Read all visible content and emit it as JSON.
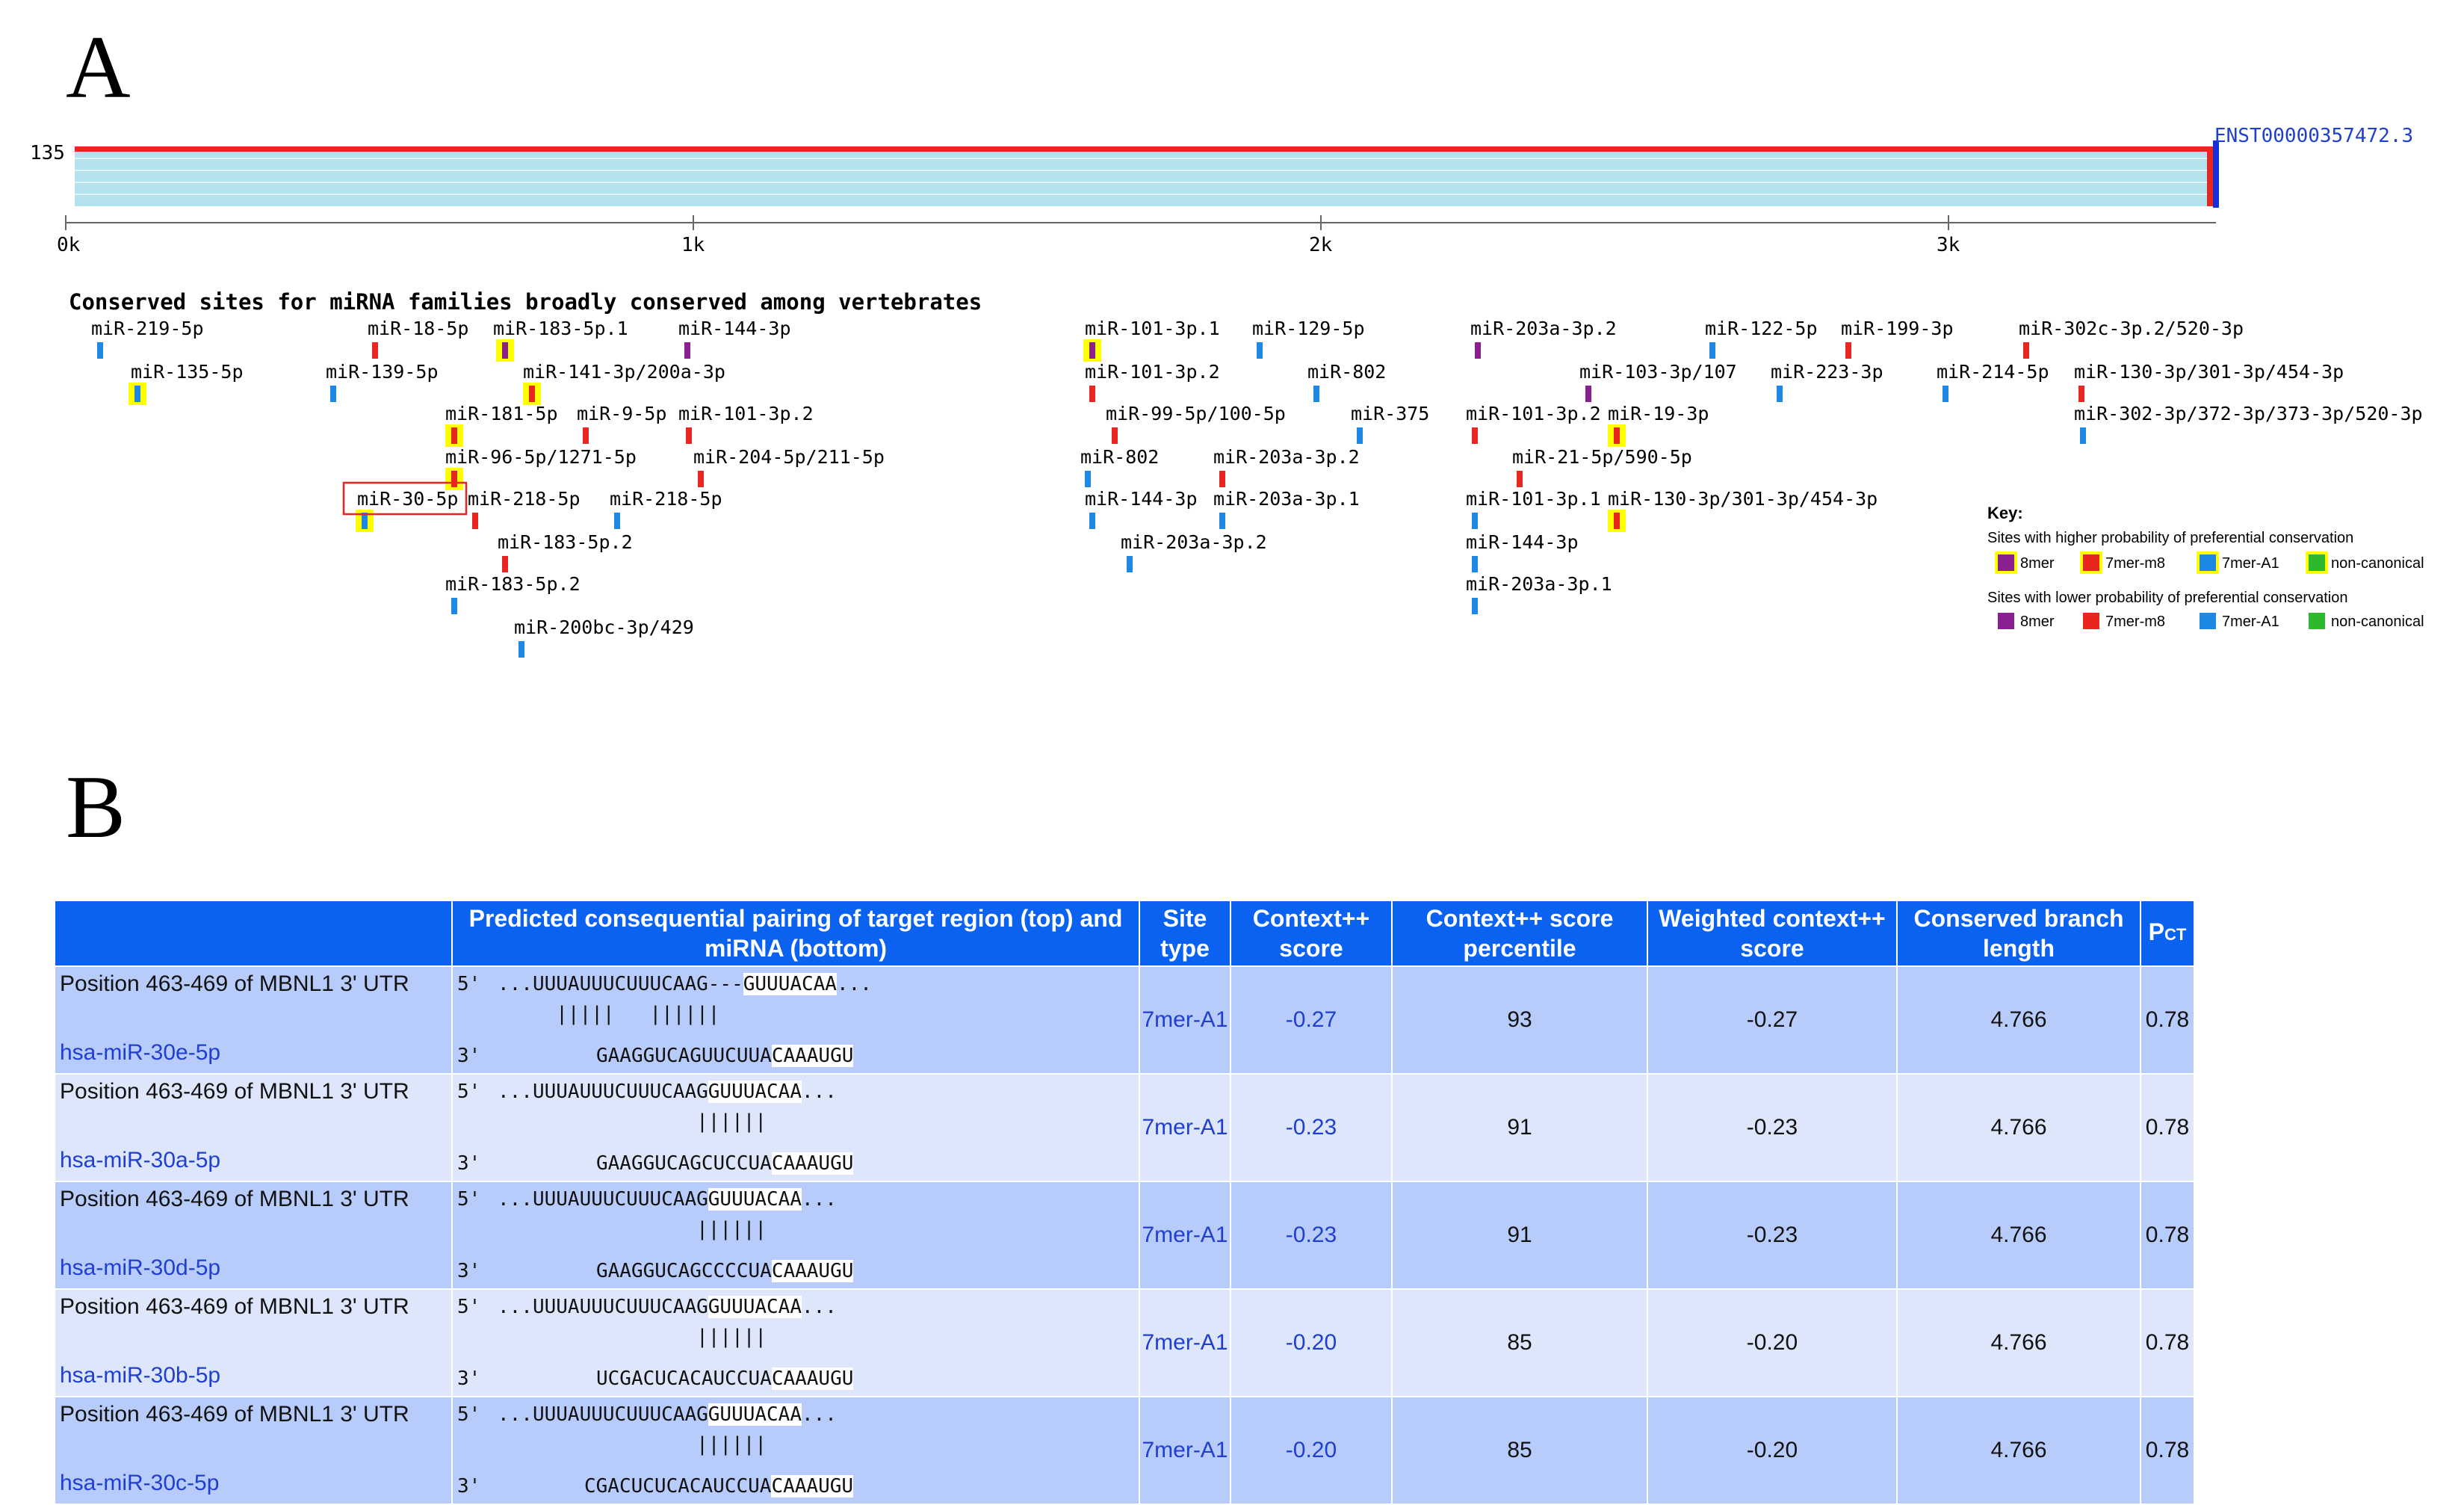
{
  "panels": {
    "a_letter": "A",
    "b_letter": "B"
  },
  "panel_a": {
    "track_value": "135",
    "transcript_id": "ENST00000357472.3",
    "axis_ticks": [
      "0k",
      "1k",
      "2k",
      "3k"
    ],
    "section_title": "Conserved sites for miRNA families broadly conserved among vertebrates",
    "key": {
      "title": "Key:",
      "higher_label": "Sites with higher probability of preferential conservation",
      "lower_label": "Sites with lower probability of preferential conservation",
      "items": [
        "8mer",
        "7mer-m8",
        "7mer-A1",
        "non-canonical"
      ],
      "colors": {
        "8mer": "#8a1f8f",
        "7mer-m8": "#e8251f",
        "7mer-A1": "#1e88e5",
        "non-canonical": "#2eb82e",
        "highlight": "#ffff00"
      }
    },
    "sites": [
      {
        "label": "miR-219-5p",
        "type": "7mer-A1",
        "conserved": false
      },
      {
        "label": "miR-135-5p",
        "type": "7mer-A1",
        "conserved": true
      },
      {
        "label": "miR-18-5p",
        "type": "7mer-m8",
        "conserved": false
      },
      {
        "label": "miR-183-5p.1",
        "type": "8mer",
        "conserved": true
      },
      {
        "label": "miR-144-3p",
        "type": "8mer",
        "conserved": false
      },
      {
        "label": "miR-139-5p",
        "type": "7mer-A1",
        "conserved": false
      },
      {
        "label": "miR-141-3p/200a-3p",
        "type": "7mer-m8",
        "conserved": true
      },
      {
        "label": "miR-181-5p",
        "type": "7mer-m8",
        "conserved": true
      },
      {
        "label": "miR-9-5p",
        "type": "7mer-m8",
        "conserved": false
      },
      {
        "label": "miR-101-3p.2",
        "type": "7mer-m8",
        "conserved": false
      },
      {
        "label": "miR-96-5p/1271-5p",
        "type": "7mer-m8",
        "conserved": true
      },
      {
        "label": "miR-204-5p/211-5p",
        "type": "7mer-m8",
        "conserved": false
      },
      {
        "label": "miR-30-5p",
        "type": "7mer-A1",
        "conserved": true
      },
      {
        "label": "miR-218-5p",
        "type": "7mer-m8",
        "conserved": false
      },
      {
        "label": "miR-218-5p",
        "type": "7mer-A1",
        "conserved": false
      },
      {
        "label": "miR-183-5p.2",
        "type": "7mer-m8",
        "conserved": false
      },
      {
        "label": "miR-183-5p.2",
        "type": "7mer-A1",
        "conserved": false
      },
      {
        "label": "miR-200bc-3p/429",
        "type": "7mer-A1",
        "conserved": false
      },
      {
        "label": "miR-101-3p.1",
        "type": "8mer",
        "conserved": true
      },
      {
        "label": "miR-129-5p",
        "type": "7mer-A1",
        "conserved": false
      },
      {
        "label": "miR-101-3p.2",
        "type": "7mer-m8",
        "conserved": false
      },
      {
        "label": "miR-802",
        "type": "7mer-A1",
        "conserved": false
      },
      {
        "label": "miR-99-5p/100-5p",
        "type": "7mer-m8",
        "conserved": false
      },
      {
        "label": "miR-375",
        "type": "7mer-A1",
        "conserved": false
      },
      {
        "label": "miR-802",
        "type": "7mer-A1",
        "conserved": false
      },
      {
        "label": "miR-203a-3p.2",
        "type": "7mer-m8",
        "conserved": false
      },
      {
        "label": "miR-144-3p",
        "type": "7mer-A1",
        "conserved": false
      },
      {
        "label": "miR-203a-3p.1",
        "type": "7mer-A1",
        "conserved": false
      },
      {
        "label": "miR-203a-3p.2",
        "type": "7mer-A1",
        "conserved": false
      },
      {
        "label": "miR-203a-3p.2",
        "type": "8mer",
        "conserved": false
      },
      {
        "label": "miR-122-5p",
        "type": "7mer-A1",
        "conserved": false
      },
      {
        "label": "miR-199-3p",
        "type": "7mer-m8",
        "conserved": false
      },
      {
        "label": "miR-302c-3p.2/520-3p",
        "type": "7mer-m8",
        "conserved": false
      },
      {
        "label": "miR-103-3p/107",
        "type": "8mer",
        "conserved": false
      },
      {
        "label": "miR-223-3p",
        "type": "7mer-A1",
        "conserved": false
      },
      {
        "label": "miR-214-5p",
        "type": "7mer-A1",
        "conserved": false
      },
      {
        "label": "miR-130-3p/301-3p/454-3p",
        "type": "7mer-m8",
        "conserved": false
      },
      {
        "label": "miR-101-3p.2",
        "type": "7mer-m8",
        "conserved": false
      },
      {
        "label": "miR-19-3p",
        "type": "7mer-m8",
        "conserved": true
      },
      {
        "label": "miR-302-3p/372-3p/373-3p/520-3p",
        "type": "7mer-A1",
        "conserved": false
      },
      {
        "label": "miR-21-5p/590-5p",
        "type": "7mer-m8",
        "conserved": false
      },
      {
        "label": "miR-101-3p.1",
        "type": "7mer-A1",
        "conserved": false
      },
      {
        "label": "miR-130-3p/301-3p/454-3p",
        "type": "7mer-m8",
        "conserved": true
      },
      {
        "label": "miR-144-3p",
        "type": "7mer-A1",
        "conserved": false
      },
      {
        "label": "miR-203a-3p.1",
        "type": "7mer-A1",
        "conserved": false
      }
    ]
  },
  "panel_b": {
    "headers": {
      "pairing": "Predicted consequential pairing of target region (top) and miRNA (bottom)",
      "site_type": "Site type",
      "context": "Context++ score",
      "percentile": "Context++ score percentile",
      "weighted": "Weighted context++ score",
      "branch": "Conserved branch length",
      "pct_main": "P",
      "pct_sub": "CT"
    },
    "rows": [
      {
        "position": "Position 463-469 of MBNL1 3' UTR",
        "mirna": "hsa-miR-30e-5p",
        "p5": "5'",
        "p3": "3'",
        "top_pre": "...UUUAUUUCUUUCAAG---",
        "top_hl": "GUUUACAA",
        "top_post": "...",
        "mid": "     |||||   ||||||",
        "bot_pre": "GAAGGUCAGUUCUUA",
        "bot_hl": "CAAAUGU",
        "site_type": "7mer-A1",
        "context": "-0.27",
        "percentile": "93",
        "weighted": "-0.27",
        "branch": "4.766",
        "pct": "0.78"
      },
      {
        "position": "Position 463-469 of MBNL1 3' UTR",
        "mirna": "hsa-miR-30a-5p",
        "p5": "5'",
        "p3": "3'",
        "top_pre": "...UUUAUUUCUUUCAAG",
        "top_hl": "GUUUACAA",
        "top_post": "...",
        "mid": "                 ||||||",
        "bot_pre": "GAAGGUCAGCUCCUA",
        "bot_hl": "CAAAUGU",
        "site_type": "7mer-A1",
        "context": "-0.23",
        "percentile": "91",
        "weighted": "-0.23",
        "branch": "4.766",
        "pct": "0.78"
      },
      {
        "position": "Position 463-469 of MBNL1 3' UTR",
        "mirna": "hsa-miR-30d-5p",
        "p5": "5'",
        "p3": "3'",
        "top_pre": "...UUUAUUUCUUUCAAG",
        "top_hl": "GUUUACAA",
        "top_post": "...",
        "mid": "                 ||||||",
        "bot_pre": "GAAGGUCAGCCCCUA",
        "bot_hl": "CAAAUGU",
        "site_type": "7mer-A1",
        "context": "-0.23",
        "percentile": "91",
        "weighted": "-0.23",
        "branch": "4.766",
        "pct": "0.78"
      },
      {
        "position": "Position 463-469 of MBNL1 3' UTR",
        "mirna": "hsa-miR-30b-5p",
        "p5": "5'",
        "p3": "3'",
        "top_pre": "...UUUAUUUCUUUCAAG",
        "top_hl": "GUUUACAA",
        "top_post": "...",
        "mid": "                 ||||||",
        "bot_pre": "UCGACUCACAUCCUA",
        "bot_hl": "CAAAUGU",
        "site_type": "7mer-A1",
        "context": "-0.20",
        "percentile": "85",
        "weighted": "-0.20",
        "branch": "4.766",
        "pct": "0.78"
      },
      {
        "position": "Position 463-469 of MBNL1 3' UTR",
        "mirna": "hsa-miR-30c-5p",
        "p5": "5'",
        "p3": "3'",
        "top_pre": "...UUUAUUUCUUUCAAG",
        "top_hl": "GUUUACAA",
        "top_post": "...",
        "mid": "                 ||||||",
        "bot_pre": "CGACUCUCACAUCCUA",
        "bot_hl": "CAAAUGU",
        "site_type": "7mer-A1",
        "context": "-0.20",
        "percentile": "85",
        "weighted": "-0.20",
        "branch": "4.766",
        "pct": "0.78"
      }
    ]
  }
}
